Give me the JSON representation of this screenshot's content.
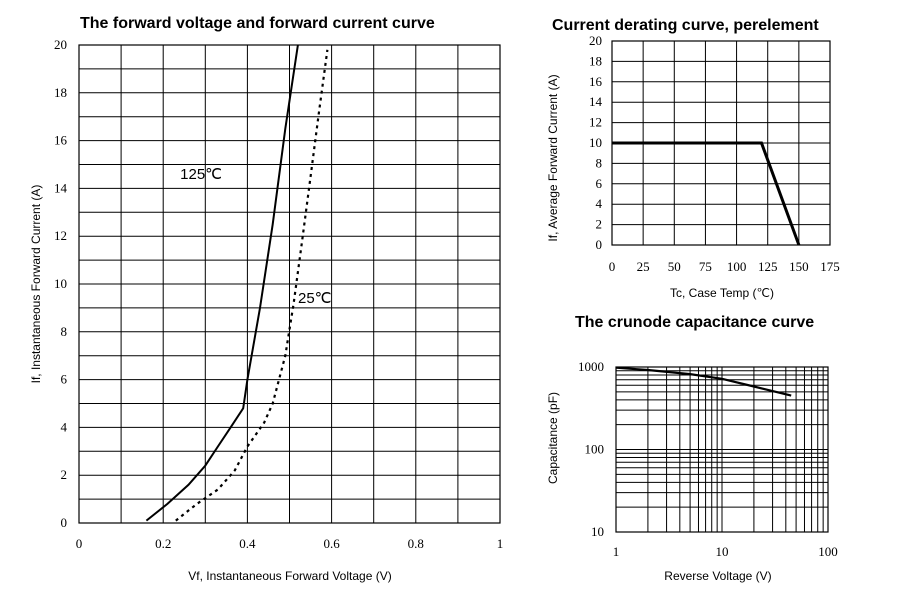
{
  "chart_data": [
    {
      "type": "line",
      "title": "The forward voltage and forward current curve",
      "xlabel": "Vf, Instantaneous Forward Voltage (V)",
      "ylabel": "If, Instantaneous Forward Current (A)",
      "xlim": [
        0,
        1
      ],
      "ylim": [
        0,
        20
      ],
      "xticks": [
        0,
        0.2,
        0.4,
        0.6,
        0.8,
        1
      ],
      "xtick_labels": [
        "0",
        "0.2",
        "0.4",
        "0.6",
        "0.8",
        "1"
      ],
      "yticks": [
        0,
        2,
        4,
        6,
        8,
        10,
        12,
        14,
        16,
        18,
        20
      ],
      "yticks_step": 2,
      "grid": true,
      "series": [
        {
          "name": "125℃",
          "style": "solid",
          "x": [
            0.16,
            0.21,
            0.26,
            0.3,
            0.33,
            0.36,
            0.39,
            0.4,
            0.43,
            0.46,
            0.49,
            0.52
          ],
          "y": [
            0.1,
            0.8,
            1.6,
            2.4,
            3.2,
            4.0,
            4.8,
            6.0,
            9.0,
            12.5,
            16.5,
            20.0
          ]
        },
        {
          "name": "25℃",
          "style": "dotted",
          "x": [
            0.23,
            0.28,
            0.33,
            0.37,
            0.4,
            0.44,
            0.46,
            0.49,
            0.51,
            0.53,
            0.55,
            0.57,
            0.59
          ],
          "y": [
            0.1,
            0.8,
            1.4,
            2.2,
            3.2,
            4.2,
            5.0,
            7.0,
            9.2,
            11.8,
            14.5,
            17.2,
            19.8
          ]
        }
      ],
      "annotations": [
        {
          "text": "125℃",
          "x": 0.29,
          "y": 14.4
        },
        {
          "text": "25℃",
          "x": 0.56,
          "y": 9.2
        }
      ]
    },
    {
      "type": "line",
      "title": "Current derating curve, perelement",
      "xlabel": "Tc, Case Temp (℃)",
      "ylabel": "If, Average Forward Current (A)",
      "xlim": [
        0,
        175
      ],
      "ylim": [
        0,
        20
      ],
      "xticks": [
        0,
        25,
        50,
        75,
        100,
        125,
        150,
        175
      ],
      "yticks": [
        0,
        2,
        4,
        6,
        8,
        10,
        12,
        14,
        16,
        18,
        20
      ],
      "grid": true,
      "series": [
        {
          "name": "",
          "style": "solid-thick",
          "x": [
            0,
            120,
            150
          ],
          "y": [
            10,
            10,
            0
          ]
        }
      ]
    },
    {
      "type": "line",
      "title": "The crunode capacitance curve",
      "xlabel": "Reverse Voltage (V)",
      "ylabel": "Capacitance (pF)",
      "xscale": "log",
      "yscale": "log",
      "xlim": [
        1,
        100
      ],
      "ylim": [
        10,
        1000
      ],
      "xticks": [
        1,
        10,
        100
      ],
      "yticks": [
        10,
        100,
        1000
      ],
      "grid": true,
      "series": [
        {
          "name": "",
          "style": "solid",
          "x": [
            1,
            2,
            5,
            10,
            20,
            45
          ],
          "y": [
            980,
            920,
            820,
            720,
            580,
            450
          ]
        }
      ]
    }
  ]
}
